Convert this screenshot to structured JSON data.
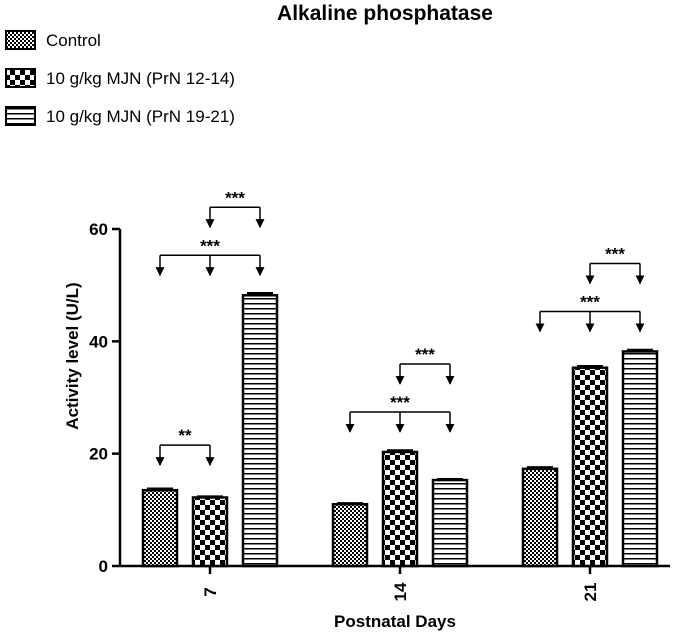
{
  "chart_data": {
    "type": "bar",
    "title": "Alkaline phosphatase",
    "xlabel": "Postnatal Days",
    "ylabel": "Activity level (U/L)",
    "ylim": [
      0,
      60
    ],
    "yticks": [
      "0",
      "20",
      "40",
      "60"
    ],
    "categories": [
      "7",
      "14",
      "21"
    ],
    "series": [
      {
        "name": "Control",
        "pattern": "checker",
        "values": [
          13.5,
          11.0,
          17.3
        ],
        "errors": [
          0.3,
          0.2,
          0.3
        ]
      },
      {
        "name": "10 g/kg MJN (PrN 12-14)",
        "pattern": "check-large",
        "values": [
          12.2,
          20.3,
          35.3
        ],
        "errors": [
          0.2,
          0.3,
          0.3
        ]
      },
      {
        "name": "10 g/kg MJN (PrN 19-21)",
        "pattern": "hstripe",
        "values": [
          48.2,
          15.3,
          38.2
        ],
        "errors": [
          0.4,
          0.2,
          0.3
        ]
      }
    ],
    "legend_position": "top-left",
    "grid": false,
    "significance": [
      {
        "category": 0,
        "from": 0,
        "to": 1,
        "label": "**"
      },
      {
        "category": 0,
        "from": 0,
        "to": 2,
        "label": "***"
      },
      {
        "category": 0,
        "from": 1,
        "to": 2,
        "label": "***"
      },
      {
        "category": 1,
        "from": 0,
        "to": 2,
        "label": "***"
      },
      {
        "category": 1,
        "from": 1,
        "to": 2,
        "label": "***"
      },
      {
        "category": 2,
        "from": 0,
        "to": 2,
        "label": "***"
      },
      {
        "category": 2,
        "from": 1,
        "to": 2,
        "label": "***"
      }
    ]
  }
}
